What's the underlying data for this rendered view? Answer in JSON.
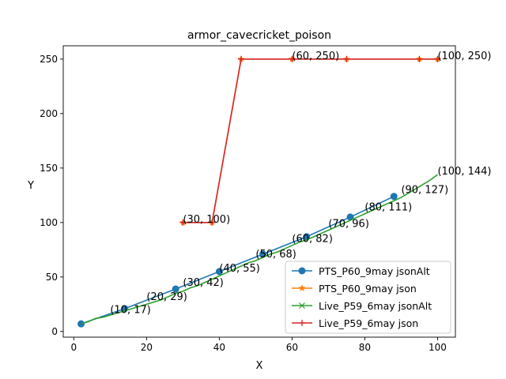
{
  "chart_data": {
    "type": "line",
    "title": "armor_cavecricket_poison",
    "xlabel": "X",
    "ylabel": "Y",
    "xlim": [
      -2.9,
      104.9
    ],
    "ylim": [
      -5.2,
      262.2
    ],
    "xticks": [
      0,
      20,
      40,
      60,
      80,
      100
    ],
    "yticks": [
      0,
      50,
      100,
      150,
      200,
      250
    ],
    "grid": false,
    "legend_position": "lower right",
    "series": [
      {
        "name": "PTS_P60_9may jsonAlt",
        "color": "#1f77b4",
        "marker": "circle",
        "x": [
          2,
          14,
          28,
          40,
          52,
          64,
          76,
          88
        ],
        "y": [
          7,
          21,
          39,
          55,
          71,
          87,
          105,
          124
        ]
      },
      {
        "name": "PTS_P60_9may json",
        "color": "#ff7f0e",
        "marker": "star",
        "x": [
          30,
          38,
          46,
          60,
          75,
          95,
          100
        ],
        "y": [
          100,
          100,
          250,
          250,
          250,
          250,
          250
        ]
      },
      {
        "name": "Live_P59_6may jsonAlt",
        "color": "#2ca02c",
        "marker": "x",
        "x": [
          2,
          4,
          6,
          8,
          10,
          12,
          14,
          16,
          18,
          20,
          22,
          24,
          26,
          28,
          30,
          32,
          34,
          36,
          38,
          40,
          42,
          44,
          46,
          48,
          50,
          52,
          54,
          56,
          58,
          60,
          62,
          64,
          66,
          68,
          70,
          72,
          74,
          76,
          78,
          80,
          82,
          84,
          86,
          88,
          90,
          92,
          94,
          96,
          98,
          100
        ],
        "y": [
          7,
          9,
          12,
          13,
          15,
          17,
          19,
          21,
          23,
          25,
          27,
          29,
          32,
          35,
          37,
          40,
          42,
          45,
          48,
          51,
          54,
          57,
          60,
          63,
          65,
          68,
          71,
          73,
          76,
          79,
          82,
          84,
          87,
          90,
          93,
          96,
          99,
          102,
          105,
          108,
          111,
          114,
          117,
          120,
          123,
          127,
          131,
          135,
          139,
          144
        ]
      },
      {
        "name": "Live_P59_6may json",
        "color": "#d62728",
        "marker": "plus",
        "x": [
          30,
          38,
          46,
          60,
          75,
          95,
          100
        ],
        "y": [
          100,
          100,
          250,
          250,
          250,
          250,
          250
        ]
      }
    ],
    "annotations": [
      {
        "label": "(10, 17)",
        "x": 10,
        "y": 17
      },
      {
        "label": "(20, 29)",
        "x": 20,
        "y": 29
      },
      {
        "label": "(30, 42)",
        "x": 30,
        "y": 42
      },
      {
        "label": "(40, 55)",
        "x": 40,
        "y": 55
      },
      {
        "label": "(50, 68)",
        "x": 50,
        "y": 68
      },
      {
        "label": "(60, 82)",
        "x": 60,
        "y": 82
      },
      {
        "label": "(70, 96)",
        "x": 70,
        "y": 96
      },
      {
        "label": "(80, 111)",
        "x": 80,
        "y": 111
      },
      {
        "label": "(90, 127)",
        "x": 90,
        "y": 127
      },
      {
        "label": "(100, 144)",
        "x": 100,
        "y": 144
      },
      {
        "label": "(30, 100)",
        "x": 30,
        "y": 100
      },
      {
        "label": "(60, 250)",
        "x": 60,
        "y": 250
      },
      {
        "label": "(100, 250)",
        "x": 100,
        "y": 250
      }
    ]
  }
}
